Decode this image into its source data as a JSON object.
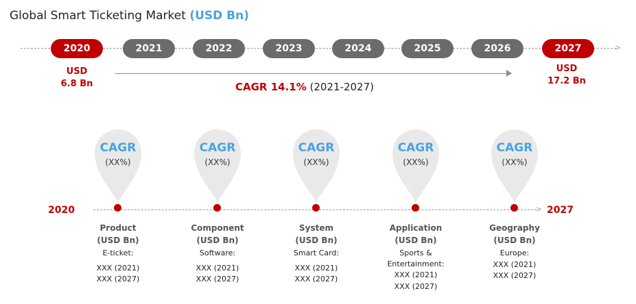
{
  "title": {
    "main": "Global Smart Ticketing Market",
    "unit": "(USD Bn)"
  },
  "timeline": {
    "years": [
      "2020",
      "2021",
      "2022",
      "2023",
      "2024",
      "2025",
      "2026",
      "2027"
    ],
    "start_value": {
      "line1": "USD",
      "line2": "6.8 Bn"
    },
    "end_value": {
      "line1": "USD",
      "line2": "17.2 Bn"
    },
    "cagr": {
      "label": "CAGR 14.1%",
      "period": "(2021-2027)"
    },
    "colors": {
      "highlight": "#c00000",
      "neutral": "#6b6b6b",
      "accent": "#4aa3df"
    }
  },
  "segments": {
    "start_year": "2020",
    "end_year": "2027",
    "items": [
      {
        "marker_title": "CAGR",
        "marker_value": "(XX%)",
        "name": "Product",
        "unit": "(USD Bn)",
        "detail": "E-ticket:",
        "v1": "XXX (2021)",
        "v2": "XXX (2027)"
      },
      {
        "marker_title": "CAGR",
        "marker_value": "(XX%)",
        "name": "Component",
        "unit": "(USD Bn)",
        "detail": "Software:",
        "v1": "XXX (2021)",
        "v2": "XXX (2027)"
      },
      {
        "marker_title": "CAGR",
        "marker_value": "(XX%)",
        "name": "System",
        "unit": "(USD Bn)",
        "detail": "Smart Card:",
        "v1": "XXX (2021)",
        "v2": "XXX (2027)"
      },
      {
        "marker_title": "CAGR",
        "marker_value": "(XX%)",
        "name": "Application",
        "unit": "(USD Bn)",
        "detail": "Sports & Entertainment: XXX (2021)",
        "v1": "XXX (2027)",
        "v2": ""
      },
      {
        "marker_title": "CAGR",
        "marker_value": "(XX%)",
        "name": "Geography",
        "unit": "(USD Bn)",
        "detail": "Europe:",
        "v1": "XXX (2021)",
        "v2": "XXX (2027)"
      }
    ]
  }
}
